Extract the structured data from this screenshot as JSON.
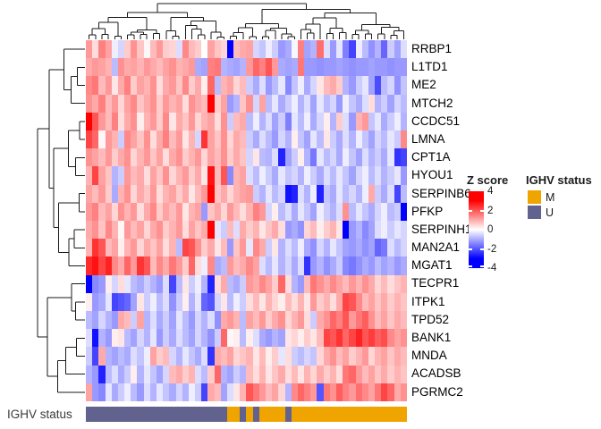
{
  "annotation_row": {
    "label": "IGHV status"
  },
  "legend_zscore": {
    "title": "Z score",
    "ticks": [
      "4",
      "2",
      "0",
      "-2",
      "-4"
    ],
    "tick_values": [
      4,
      2,
      0,
      -2,
      -4
    ]
  },
  "legend_ighv": {
    "title": "IGHV status",
    "entries": [
      {
        "label": "M",
        "color": "#F0A400"
      },
      {
        "label": "U",
        "color": "#62628F"
      }
    ]
  },
  "colors": {
    "heat_positive": "#FF0000",
    "heat_mid": "#FFFFFF",
    "heat_negative": "#0000FF",
    "annotation_M": "#F0A400",
    "annotation_U": "#62628F",
    "dendrogram": "#1a1a1a"
  },
  "chart_data": {
    "type": "heatmap",
    "title": "",
    "rows": [
      "RRBP1",
      "L1TD1",
      "ME2",
      "MTCH2",
      "CCDC51",
      "LMNA",
      "CPT1A",
      "HYOU1",
      "SERPINB6",
      "PFKP",
      "SERPINH1",
      "MAN2A1",
      "MGAT1",
      "TECPR1",
      "ITPK1",
      "TPD52",
      "BANK1",
      "MNDA",
      "ACADSB",
      "PGRMC2"
    ],
    "n_columns": 50,
    "zlim": [
      -4,
      4
    ],
    "color_scale": "blue-white-red",
    "clustered_rows": true,
    "clustered_columns": true,
    "row_split": [
      13,
      7
    ],
    "column_split": [
      22,
      28
    ],
    "column_annotation": [
      "U",
      "U",
      "U",
      "U",
      "U",
      "U",
      "U",
      "U",
      "U",
      "U",
      "U",
      "U",
      "U",
      "U",
      "U",
      "U",
      "U",
      "U",
      "U",
      "U",
      "U",
      "U",
      "M",
      "M",
      "U",
      "M",
      "U",
      "M",
      "M",
      "M",
      "M",
      "U",
      "M",
      "M",
      "M",
      "M",
      "M",
      "M",
      "M",
      "M",
      "M",
      "M",
      "M",
      "M",
      "M",
      "M",
      "M",
      "M",
      "M",
      "M"
    ],
    "values": [
      [
        1.2,
        0.4,
        1.5,
        1.1,
        -0.2,
        -0.5,
        0.6,
        1.3,
        0.7,
        0.1,
        0.8,
        1.2,
        0.6,
        0.5,
        -0.4,
        1.4,
        0.8,
        0.6,
        0.0,
        1.1,
        0.7,
        0.5,
        -3.6,
        0.8,
        1.0,
        1.1,
        -0.5,
        -0.7,
        -0.2,
        -0.6,
        -1.2,
        -1.0,
        -0.1,
        1.5,
        -1.1,
        -0.9,
        1.7,
        -0.4,
        -1.2,
        -0.3,
        -1.5,
        -2.2,
        -0.2,
        -0.8,
        -1.3,
        -0.9,
        -1.8,
        -0.6,
        -1.1,
        -0.4
      ],
      [
        1.0,
        1.2,
        1.1,
        0.9,
        -0.8,
        1.3,
        1.0,
        1.1,
        0.9,
        1.2,
        1.0,
        0.8,
        1.1,
        1.3,
        0.9,
        1.0,
        1.2,
        -1.0,
        -1.1,
        1.5,
        1.6,
        -0.9,
        -1.0,
        -1.1,
        -0.9,
        1.2,
        1.8,
        1.5,
        2.0,
        1.2,
        -1.0,
        -1.1,
        -1.0,
        1.6,
        -1.2,
        -1.2,
        -1.3,
        -1.2,
        -1.2,
        -1.1,
        -1.2,
        -1.3,
        -1.2,
        -1.2,
        -1.1,
        -1.2,
        -1.2,
        -1.3,
        -1.2,
        -1.2
      ],
      [
        1.4,
        1.6,
        0.8,
        1.2,
        0.3,
        1.0,
        1.5,
        0.6,
        1.1,
        0.9,
        1.3,
        0.4,
        1.0,
        1.2,
        0.7,
        1.4,
        0.6,
        1.0,
        0.2,
        1.8,
        -0.8,
        0.9,
        1.1,
        0.5,
        0.8,
        -0.6,
        -1.0,
        -0.4,
        -1.2,
        -0.8,
        -0.3,
        -1.4,
        -0.7,
        -0.2,
        -1.0,
        -0.5,
        0.3,
        0.8,
        1.0,
        0.6,
        -0.9,
        -1.2,
        -0.6,
        -0.3,
        -1.1,
        -2.1,
        -0.8,
        -0.5,
        -1.3,
        -0.7
      ],
      [
        1.3,
        1.0,
        1.5,
        0.8,
        1.2,
        0.5,
        1.1,
        1.4,
        0.7,
        1.0,
        1.3,
        0.6,
        1.2,
        0.9,
        1.1,
        0.4,
        1.3,
        1.0,
        0.8,
        3.2,
        0.6,
        1.1,
        -1.2,
        -0.9,
        0.7,
        1.3,
        -0.5,
        1.1,
        -0.8,
        -0.3,
        -1.0,
        -0.6,
        -0.2,
        -0.9,
        -0.4,
        -1.1,
        -0.3,
        -0.8,
        -0.5,
        -1.2,
        -0.2,
        -0.7,
        -1.0,
        -0.4,
        0.4,
        -0.9,
        -0.6,
        -1.1,
        -0.5,
        -0.8
      ],
      [
        3.0,
        2.0,
        1.2,
        0.8,
        1.5,
        0.4,
        1.0,
        1.3,
        0.2,
        0.9,
        1.2,
        0.6,
        1.4,
        0.3,
        1.0,
        0.7,
        1.2,
        0.5,
        0.9,
        1.1,
        0.4,
        1.3,
        -0.6,
        0.8,
        1.0,
        -0.8,
        -0.2,
        -0.9,
        -0.4,
        -1.1,
        -0.6,
        -1.5,
        -0.3,
        -0.8,
        -0.2,
        -1.0,
        -0.5,
        0.2,
        -0.9,
        0.6,
        -0.4,
        -1.2,
        0.9,
        1.2,
        -0.7,
        -0.3,
        -1.0,
        -0.6,
        -0.2,
        -0.9
      ],
      [
        2.2,
        1.8,
        0.1,
        1.2,
        0.9,
        -0.6,
        1.4,
        1.1,
        0.7,
        1.3,
        0.4,
        1.0,
        1.5,
        0.8,
        1.2,
        0.3,
        0.9,
        -0.5,
        2.4,
        1.1,
        0.7,
        1.3,
        0.5,
        1.0,
        0.8,
        -0.6,
        -1.0,
        -0.4,
        -0.8,
        -1.2,
        -0.5,
        -0.9,
        0.2,
        -0.7,
        -1.1,
        -0.3,
        -0.8,
        0.3,
        -0.6,
        -1.0,
        -0.4,
        -0.9,
        -0.2,
        -0.7,
        -1.1,
        -0.5,
        -0.8,
        -0.3,
        -0.6,
        1.4
      ],
      [
        1.3,
        1.1,
        0.8,
        1.2,
        0.6,
        1.0,
        1.3,
        0.5,
        0.9,
        1.2,
        0.7,
        1.1,
        0.4,
        1.0,
        1.3,
        0.6,
        0.9,
        1.2,
        0.5,
        1.1,
        0.8,
        1.3,
        0.6,
        1.0,
        0.7,
        -0.5,
        0.3,
        -0.8,
        -0.9,
        -0.4,
        -2.6,
        -1.1,
        -0.6,
        0.2,
        -0.9,
        -1.6,
        -0.3,
        -0.8,
        -0.5,
        -1.0,
        -0.2,
        -0.7,
        -1.1,
        -0.4,
        -0.9,
        -0.6,
        -1.0,
        -0.3,
        -2.4,
        -2.2
      ],
      [
        0.9,
        2.2,
        1.1,
        0.7,
        -0.9,
        -0.6,
        1.2,
        0.8,
        1.0,
        0.4,
        1.1,
        0.7,
        1.3,
        0.5,
        0.9,
        1.2,
        0.6,
        1.0,
        0.3,
        2.8,
        0.8,
        2.0,
        -1.4,
        0.9,
        1.1,
        -0.4,
        -0.8,
        -0.2,
        -0.6,
        -1.0,
        -0.3,
        -0.7,
        -0.5,
        -0.9,
        -0.2,
        -0.6,
        -1.0,
        -0.4,
        -0.8,
        -0.3,
        -0.7,
        -1.1,
        -0.5,
        -0.2,
        -0.8,
        -0.4,
        -0.9,
        -0.6,
        -0.3,
        -1.2
      ],
      [
        1.1,
        0.8,
        1.2,
        0.6,
        -1.0,
        0.9,
        1.3,
        0.5,
        1.0,
        0.7,
        1.2,
        0.4,
        0.9,
        1.1,
        0.6,
        1.0,
        0.3,
        0.8,
        1.2,
        3.2,
        0.7,
        1.0,
        0.5,
        0.9,
        1.1,
        1.2,
        -0.6,
        -0.9,
        -0.3,
        -0.8,
        -0.5,
        -2.8,
        -2.6,
        -0.4,
        -0.9,
        -0.2,
        -2.6,
        -0.7,
        -1.0,
        -0.3,
        -0.8,
        -0.5,
        -0.9,
        -0.2,
        1.0,
        -0.6,
        -1.0,
        -0.4,
        -2.2,
        -0.8
      ],
      [
        1.2,
        1.5,
        0.8,
        1.1,
        0.5,
        1.3,
        0.9,
        1.2,
        0.4,
        1.0,
        1.4,
        0.6,
        1.1,
        0.8,
        1.2,
        0.3,
        0.9,
        1.1,
        -1.2,
        0.7,
        1.0,
        0.5,
        1.2,
        0.8,
        0.4,
        0.9,
        1.5,
        1.2,
        -0.5,
        0.2,
        -0.8,
        -0.4,
        -1.0,
        -0.3,
        -0.7,
        -1.1,
        -0.2,
        -0.6,
        -0.9,
        -0.4,
        1.3,
        -0.8,
        -0.3,
        -0.7,
        -1.0,
        -0.5,
        -0.2,
        -0.8,
        -0.6,
        -3.0
      ],
      [
        1.0,
        1.3,
        0.7,
        1.4,
        0.9,
        0.1,
        1.2,
        0.8,
        1.1,
        0.5,
        1.0,
        1.3,
        0.6,
        0.9,
        1.2,
        0.4,
        1.1,
        0.7,
        1.0,
        3.4,
        -0.3,
        -0.6,
        0.8,
        -0.4,
        1.0,
        0.6,
        0.9,
        0.3,
        0.7,
        1.0,
        0.4,
        -1.2,
        -1.0,
        -1.3,
        0.5,
        0.8,
        0.2,
        0.6,
        0.9,
        0.3,
        -3.0,
        -1.2,
        -0.9,
        -1.4,
        -1.1,
        -0.4,
        -0.2,
        -0.6,
        -0.3,
        -0.5
      ],
      [
        0.9,
        2.4,
        2.0,
        0.8,
        1.1,
        0.2,
        0.9,
        1.2,
        0.5,
        1.0,
        0.7,
        1.1,
        0.4,
        0.9,
        -0.8,
        2.2,
        2.0,
        1.3,
        0.6,
        1.0,
        0.3,
        0.8,
        -1.2,
        0.7,
        1.2,
        -0.3,
        1.4,
        1.0,
        -0.6,
        0.3,
        -0.9,
        -0.4,
        -0.8,
        -0.2,
        -1.0,
        -1.3,
        -0.5,
        -0.9,
        -0.3,
        -0.7,
        -1.1,
        -1.2,
        -1.0,
        -1.3,
        -1.1,
        -1.8,
        -1.6,
        -0.4,
        -0.8,
        -0.5
      ],
      [
        2.5,
        2.8,
        2.2,
        2.6,
        1.4,
        1.0,
        1.8,
        1.2,
        2.4,
        2.0,
        0.8,
        1.4,
        1.0,
        1.6,
        1.2,
        0.6,
        1.8,
        0.4,
        -0.2,
        1.4,
        -1.0,
        -0.8,
        1.2,
        0.8,
        1.0,
        1.4,
        1.1,
        -0.4,
        -0.8,
        -0.3,
        -0.9,
        -0.5,
        -1.0,
        -0.4,
        -2.4,
        -1.2,
        -0.9,
        -1.3,
        -1.0,
        -0.6,
        -1.4,
        -1.6,
        -1.3,
        -1.0,
        -1.2,
        -0.8,
        -1.1,
        -0.9,
        -1.2,
        -1.0
      ],
      [
        -3.0,
        -1.4,
        -1.2,
        0.2,
        -0.5,
        0.4,
        -0.3,
        -0.8,
        -1.0,
        -0.6,
        -0.9,
        -1.2,
        -0.4,
        -2.2,
        -0.8,
        0.3,
        -0.6,
        -0.2,
        -0.9,
        -2.6,
        0.4,
        1.0,
        -0.8,
        -1.0,
        -0.6,
        1.2,
        1.0,
        1.4,
        1.1,
        0.6,
        1.8,
        0.4,
        -0.9,
        -1.2,
        0.8,
        1.6,
        1.3,
        1.0,
        1.4,
        1.1,
        0.8,
        1.2,
        0.9,
        1.3,
        1.0,
        0.5,
        0.8,
        0.4,
        0.7,
        0.9
      ],
      [
        0.2,
        -1.2,
        -1.0,
        -0.3,
        -2.2,
        -2.0,
        -1.8,
        -1.1,
        0.3,
        -0.6,
        -0.2,
        -0.8,
        -0.4,
        -1.3,
        -0.6,
        0.2,
        -0.9,
        -0.3,
        -1.8,
        -2.0,
        -0.5,
        0.3,
        -0.8,
        -0.2,
        -0.6,
        0.4,
        0.8,
        0.3,
        0.9,
        0.5,
        0.2,
        0.8,
        0.4,
        0.9,
        0.3,
        1.2,
        0.6,
        0.9,
        0.4,
        1.0,
        2.2,
        2.0,
        1.4,
        0.8,
        1.1,
        0.7,
        1.0,
        0.6,
        0.9,
        0.7
      ],
      [
        -0.8,
        -1.1,
        -0.5,
        -0.9,
        -1.2,
        1.0,
        0.8,
        -0.6,
        1.1,
        -0.9,
        -0.4,
        -1.0,
        -0.6,
        -1.1,
        -0.3,
        -0.8,
        -1.2,
        -0.5,
        -0.9,
        -0.4,
        -1.3,
        1.0,
        1.2,
        0.9,
        -0.8,
        1.1,
        0.8,
        1.2,
        0.6,
        1.0,
        1.3,
        0.5,
        0.9,
        1.2,
        0.4,
        -0.6,
        1.0,
        1.3,
        1.8,
        1.5,
        2.0,
        1.2,
        1.6,
        1.9,
        1.3,
        0.8,
        1.1,
        0.7,
        1.0,
        0.8
      ],
      [
        -0.4,
        -2.8,
        -0.9,
        -1.2,
        0.2,
        0.3,
        -0.8,
        -1.1,
        -0.5,
        -0.9,
        -0.3,
        -1.2,
        -0.6,
        -1.0,
        -0.4,
        -0.8,
        -1.1,
        -0.5,
        -0.9,
        -1.3,
        -0.6,
        1.8,
        0.1,
        0.2,
        -0.8,
        0.2,
        -0.4,
        -1.0,
        -1.2,
        -0.9,
        -1.1,
        0.3,
        0.5,
        0.2,
        0.6,
        0.3,
        0.8,
        2.2,
        2.0,
        2.4,
        1.8,
        2.2,
        2.6,
        2.0,
        2.3,
        1.9,
        2.1,
        1.4,
        1.1,
        1.3
      ],
      [
        -0.6,
        -2.2,
        1.0,
        -0.9,
        -1.1,
        -0.8,
        -1.0,
        -0.4,
        -0.7,
        -0.2,
        1.1,
        0.6,
        0.8,
        -0.5,
        -0.9,
        -0.3,
        -0.7,
        -1.0,
        -0.4,
        -2.4,
        1.0,
        0.8,
        1.1,
        0.5,
        0.7,
        0.9,
        0.3,
        0.8,
        0.2,
        0.6,
        -0.3,
        0.4,
        -0.6,
        -0.8,
        -0.5,
        -0.7,
        0.5,
        1.0,
        1.3,
        0.8,
        1.1,
        0.6,
        0.9,
        1.2,
        0.5,
        0.9,
        1.1,
        0.7,
        1.0,
        0.8
      ],
      [
        -0.9,
        -1.2,
        -2.6,
        -0.8,
        -0.4,
        -1.0,
        -0.6,
        0.2,
        -0.9,
        -0.3,
        -0.7,
        -1.1,
        -0.5,
        0.8,
        1.0,
        0.6,
        0.9,
        -0.4,
        -0.8,
        0.6,
        1.8,
        -0.9,
        -1.1,
        -0.6,
        -0.9,
        0.8,
        0.4,
        0.9,
        0.3,
        0.7,
        1.0,
        0.4,
        0.8,
        0.3,
        0.9,
        0.5,
        1.0,
        0.6,
        0.9,
        0.4,
        1.6,
        1.8,
        1.2,
        0.8,
        1.1,
        0.7,
        1.0,
        0.6,
        0.9,
        0.7
      ],
      [
        1.1,
        -1.2,
        -1.4,
        -0.3,
        -1.0,
        -0.6,
        -0.2,
        -0.8,
        -1.2,
        -0.4,
        -0.9,
        -0.3,
        -0.7,
        -1.0,
        -0.5,
        -0.9,
        -0.2,
        -0.6,
        -2.2,
        1.0,
        0.8,
        -1.1,
        -0.4,
        0.3,
        0.9,
        2.0,
        1.6,
        1.2,
        0.8,
        1.1,
        0.5,
        -0.9,
        1.4,
        1.8,
        1.5,
        1.2,
        -2.0,
        1.6,
        1.3,
        1.9,
        1.5,
        1.2,
        1.7,
        1.4,
        1.1,
        1.6,
        2.2,
        1.8,
        1.0,
        1.3
      ]
    ]
  }
}
